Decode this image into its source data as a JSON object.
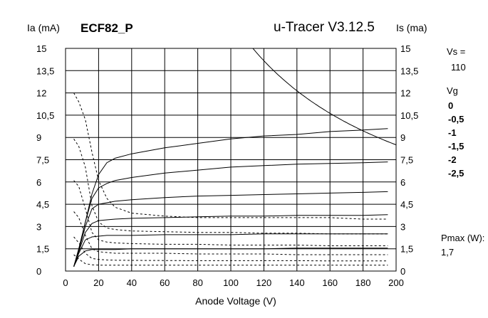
{
  "chart_data": {
    "type": "line",
    "title": "u-Tracer V3.12.5",
    "tube": "ECF82_P",
    "xlabel": "Anode Voltage (V)",
    "ylabel_left": "Ia (mA)",
    "ylabel_right": "Is (ma)",
    "xlim": [
      0,
      200
    ],
    "ylim": [
      0,
      15
    ],
    "x_ticks": [
      "0",
      "20",
      "40",
      "60",
      "80",
      "100",
      "120",
      "140",
      "160",
      "180",
      "200"
    ],
    "y_ticks": [
      "0",
      "1,5",
      "3",
      "4,5",
      "6",
      "7,5",
      "9",
      "10,5",
      "12",
      "13,5",
      "15"
    ],
    "grid": true,
    "legend": {
      "vs_label": "Vs =",
      "vs_value": "110",
      "vg_label": "Vg",
      "vg_values": [
        "0",
        "-0,5",
        "-1",
        "-1,5",
        "-2",
        "-2,5"
      ],
      "pmax_label": "Pmax (W):",
      "pmax_value": "1,7"
    },
    "pmax_watts": 1.7,
    "anode_series": [
      {
        "name": "0",
        "x": [
          5,
          8,
          12,
          16,
          20,
          25,
          30,
          40,
          60,
          80,
          100,
          120,
          140,
          160,
          180,
          195
        ],
        "y": [
          0.3,
          1.5,
          3.3,
          5.2,
          6.5,
          7.3,
          7.6,
          7.9,
          8.3,
          8.6,
          8.9,
          9.1,
          9.2,
          9.4,
          9.5,
          9.6
        ]
      },
      {
        "name": "-0,5",
        "x": [
          5,
          8,
          12,
          16,
          20,
          25,
          30,
          40,
          60,
          80,
          100,
          120,
          140,
          160,
          180,
          195
        ],
        "y": [
          0.3,
          1.5,
          3.3,
          4.9,
          5.6,
          5.9,
          6.1,
          6.3,
          6.6,
          6.8,
          7.0,
          7.1,
          7.2,
          7.25,
          7.3,
          7.35
        ]
      },
      {
        "name": "-1",
        "x": [
          5,
          8,
          12,
          16,
          20,
          25,
          30,
          40,
          60,
          80,
          100,
          120,
          140,
          160,
          180,
          195
        ],
        "y": [
          0.3,
          1.4,
          3.0,
          4.2,
          4.5,
          4.6,
          4.7,
          4.8,
          4.95,
          5.05,
          5.1,
          5.15,
          5.2,
          5.25,
          5.3,
          5.35
        ]
      },
      {
        "name": "-1,5",
        "x": [
          5,
          8,
          12,
          16,
          20,
          25,
          30,
          40,
          60,
          80,
          100,
          120,
          140,
          160,
          180,
          195
        ],
        "y": [
          0.3,
          1.3,
          2.6,
          3.2,
          3.4,
          3.45,
          3.5,
          3.55,
          3.6,
          3.65,
          3.7,
          3.7,
          3.75,
          3.75,
          3.75,
          3.8
        ]
      },
      {
        "name": "-2",
        "x": [
          5,
          8,
          12,
          16,
          20,
          25,
          30,
          40,
          60,
          80,
          100,
          120,
          140,
          160,
          180,
          195
        ],
        "y": [
          0.3,
          1.2,
          2.1,
          2.3,
          2.35,
          2.4,
          2.4,
          2.4,
          2.45,
          2.45,
          2.45,
          2.5,
          2.5,
          2.5,
          2.5,
          2.5
        ]
      },
      {
        "name": "-2,5",
        "x": [
          5,
          8,
          12,
          16,
          20,
          25,
          30,
          40,
          60,
          80,
          100,
          120,
          140,
          160,
          180,
          195
        ],
        "y": [
          0.3,
          1.0,
          1.35,
          1.45,
          1.45,
          1.45,
          1.45,
          1.5,
          1.5,
          1.5,
          1.5,
          1.5,
          1.55,
          1.55,
          1.55,
          1.55
        ]
      }
    ],
    "screen_series": [
      {
        "name": "0",
        "x": [
          5,
          8,
          12,
          16,
          20,
          25,
          30,
          40,
          60,
          80,
          100,
          120,
          140,
          160,
          180,
          195
        ],
        "y": [
          12.0,
          11.4,
          10.2,
          8.0,
          6.1,
          4.9,
          4.3,
          3.9,
          3.7,
          3.6,
          3.6,
          3.6,
          3.6,
          3.6,
          3.5,
          3.5
        ]
      },
      {
        "name": "-0,5",
        "x": [
          5,
          8,
          12,
          16,
          20,
          25,
          30,
          40,
          60,
          80,
          100,
          120,
          140,
          160,
          180,
          195
        ],
        "y": [
          8.9,
          8.4,
          7.0,
          4.4,
          3.3,
          2.9,
          2.8,
          2.7,
          2.65,
          2.6,
          2.6,
          2.55,
          2.55,
          2.5,
          2.5,
          2.5
        ]
      },
      {
        "name": "-1",
        "x": [
          5,
          8,
          12,
          16,
          20,
          25,
          30,
          40,
          60,
          80,
          100,
          120,
          140,
          160,
          180,
          195
        ],
        "y": [
          6.1,
          5.7,
          4.2,
          2.6,
          2.1,
          1.95,
          1.9,
          1.85,
          1.8,
          1.8,
          1.75,
          1.75,
          1.75,
          1.7,
          1.7,
          1.7
        ]
      },
      {
        "name": "-1,5",
        "x": [
          5,
          8,
          12,
          16,
          20,
          25,
          30,
          40,
          60,
          80,
          100,
          120,
          140,
          160,
          180,
          195
        ],
        "y": [
          4.0,
          3.6,
          2.4,
          1.5,
          1.3,
          1.25,
          1.2,
          1.2,
          1.2,
          1.15,
          1.15,
          1.15,
          1.1,
          1.1,
          1.1,
          1.1
        ]
      },
      {
        "name": "-2",
        "x": [
          5,
          8,
          12,
          16,
          20,
          25,
          30,
          40,
          60,
          80,
          100,
          120,
          140,
          160,
          180,
          195
        ],
        "y": [
          2.3,
          1.9,
          1.2,
          0.85,
          0.78,
          0.75,
          0.73,
          0.72,
          0.71,
          0.7,
          0.7,
          0.7,
          0.7,
          0.68,
          0.68,
          0.68
        ]
      },
      {
        "name": "-2,5",
        "x": [
          5,
          8,
          12,
          16,
          20,
          25,
          30,
          40,
          60,
          80,
          100,
          120,
          140,
          160,
          180,
          195
        ],
        "y": [
          1.1,
          0.8,
          0.5,
          0.42,
          0.4,
          0.4,
          0.4,
          0.4,
          0.4,
          0.4,
          0.4,
          0.4,
          0.4,
          0.4,
          0.4,
          0.4
        ]
      }
    ]
  }
}
